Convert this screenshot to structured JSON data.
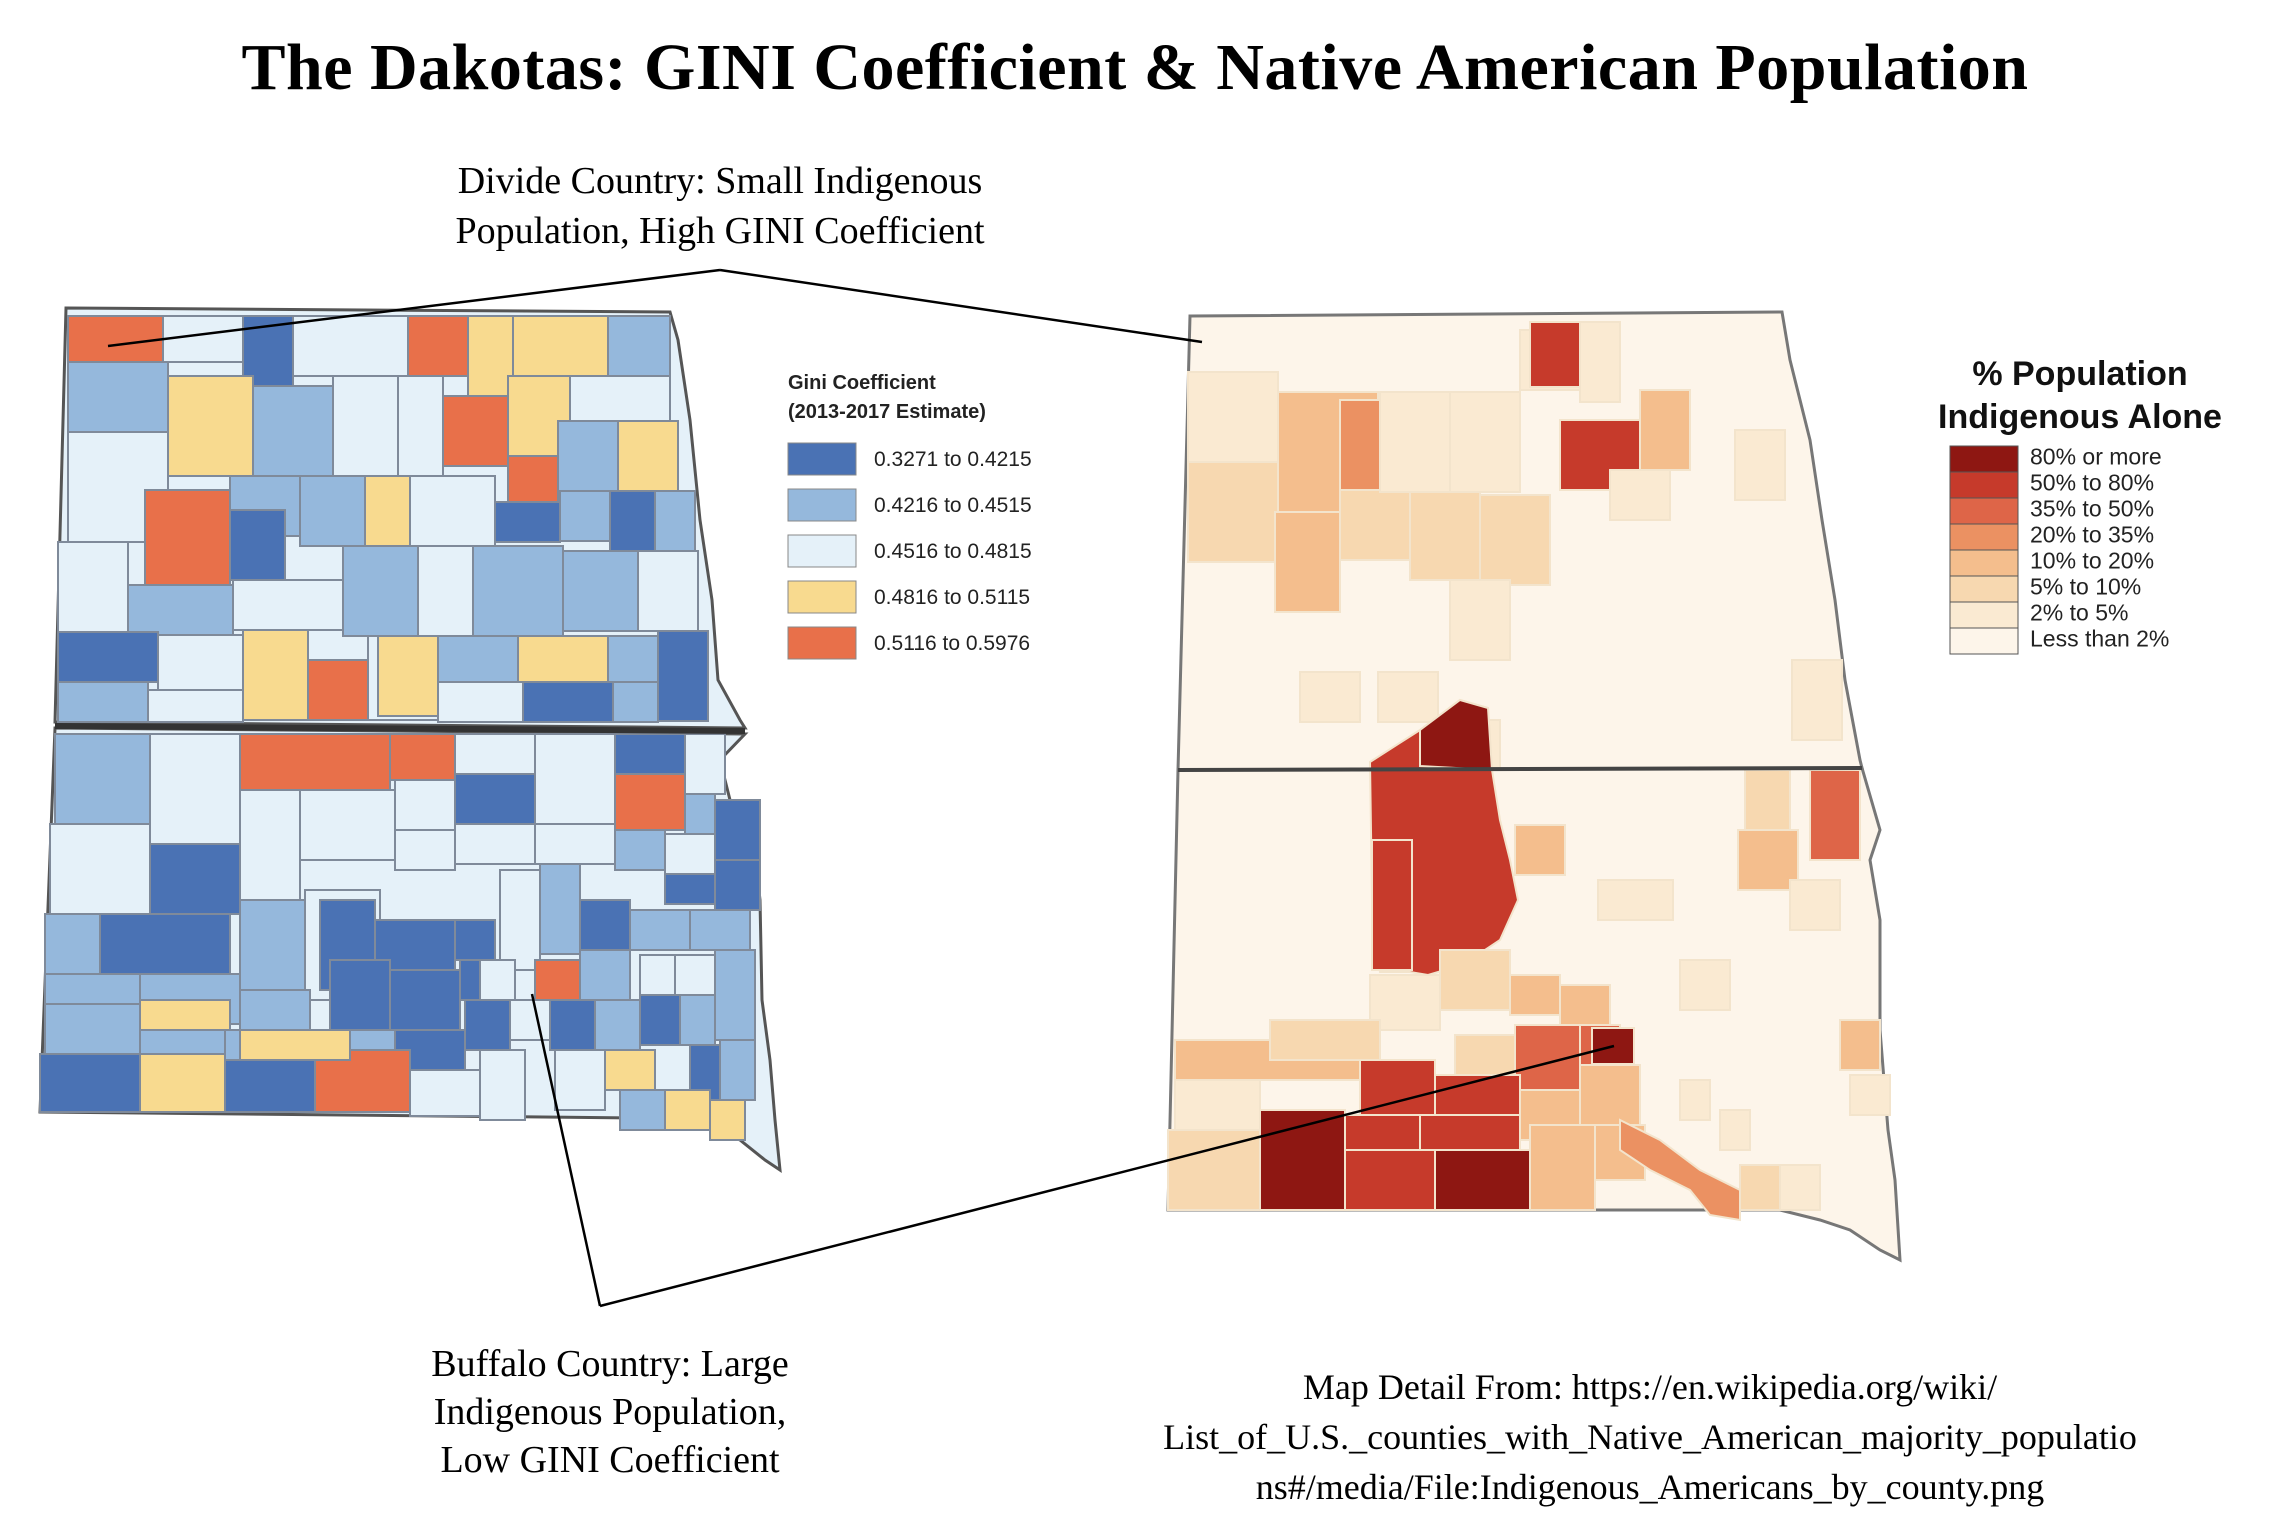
{
  "title": "The Dakotas: GINI Coefficient & Native American Population",
  "divide_annotation": {
    "line1": "Divide Country: Small Indigenous",
    "line2": "Population, High GINI Coefficient"
  },
  "buffalo_annotation": {
    "line1": "Buffalo Country: Large",
    "line2": "Indigenous Population,",
    "line3": "Low GINI Coefficient"
  },
  "source_annotation": {
    "line1": "Map Detail From: https://en.wikipedia.org/wiki/",
    "line2": "List_of_U.S._counties_with_Native_American_majority_populatio",
    "line3": "ns#/media/File:Indigenous_Americans_by_county.png"
  },
  "gini_legend": {
    "title_line1": "Gini Coefficient",
    "title_line2": "(2013-2017 Estimate)",
    "items": [
      {
        "label": "0.3271 to 0.4215",
        "color": "#4a72b4"
      },
      {
        "label": "0.4216 to 0.4515",
        "color": "#95b8dc"
      },
      {
        "label": "0.4516 to 0.4815",
        "color": "#e5f1f9"
      },
      {
        "label": "0.4816 to 0.5115",
        "color": "#f8da8f"
      },
      {
        "label": "0.5116  to 0.5976",
        "color": "#e8704a"
      }
    ]
  },
  "indigenous_legend": {
    "title_line1": "% Population",
    "title_line2": "Indigenous Alone",
    "items": [
      {
        "label": "80% or more",
        "color": "#8e1712"
      },
      {
        "label": "50% to 80%",
        "color": "#c63a2b"
      },
      {
        "label": "35% to 50%",
        "color": "#de6548"
      },
      {
        "label": "20% to 35%",
        "color": "#eb9162"
      },
      {
        "label": "10% to 20%",
        "color": "#f4be8d"
      },
      {
        "label": "5% to 10%",
        "color": "#f7d8b0"
      },
      {
        "label": "2% to 5%",
        "color": "#faead2"
      },
      {
        "label": "Less than 2%",
        "color": "#fdf5ea"
      }
    ]
  }
}
